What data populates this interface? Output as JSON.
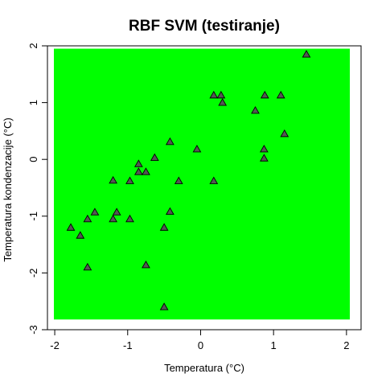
{
  "chart_data": {
    "type": "scatter",
    "title": "RBF SVM (testiranje)",
    "xlabel": "Temperatura (°C)",
    "ylabel": "Temperatura kondenzacije (°C)",
    "xlim": [
      -2.1,
      2.2
    ],
    "ylim": [
      -3.0,
      2.0
    ],
    "x_ticks": [
      -2,
      -1,
      0,
      1,
      2
    ],
    "y_ticks": [
      -3,
      -2,
      -1,
      0,
      1,
      2
    ],
    "region": {
      "x": [
        -2.1,
        2.2
      ],
      "y": [
        -2.82,
        1.95
      ],
      "color": "#00ff00"
    },
    "grid": false,
    "legend": "none",
    "series": [
      {
        "marker": "triangle",
        "color": "#555555",
        "points": [
          [
            -1.78,
            -1.2
          ],
          [
            -1.65,
            -1.34
          ],
          [
            -1.55,
            -1.05
          ],
          [
            -1.55,
            -1.9
          ],
          [
            -1.45,
            -0.93
          ],
          [
            -1.2,
            -0.37
          ],
          [
            -1.2,
            -1.05
          ],
          [
            -1.15,
            -0.93
          ],
          [
            -0.97,
            -0.38
          ],
          [
            -0.97,
            -1.05
          ],
          [
            -0.85,
            -0.08
          ],
          [
            -0.85,
            -0.22
          ],
          [
            -0.75,
            -0.22
          ],
          [
            -0.75,
            -1.86
          ],
          [
            -0.63,
            0.03
          ],
          [
            -0.5,
            -1.2
          ],
          [
            -0.5,
            -2.6
          ],
          [
            -0.42,
            -0.92
          ],
          [
            -0.42,
            0.31
          ],
          [
            -0.3,
            -0.38
          ],
          [
            -0.05,
            0.18
          ],
          [
            0.18,
            -0.38
          ],
          [
            0.18,
            1.13
          ],
          [
            0.28,
            1.13
          ],
          [
            0.3,
            1.0
          ],
          [
            0.75,
            0.86
          ],
          [
            0.87,
            0.02
          ],
          [
            0.87,
            0.18
          ],
          [
            0.88,
            1.13
          ],
          [
            1.1,
            1.13
          ],
          [
            1.15,
            0.45
          ],
          [
            1.45,
            1.85
          ]
        ]
      }
    ]
  }
}
